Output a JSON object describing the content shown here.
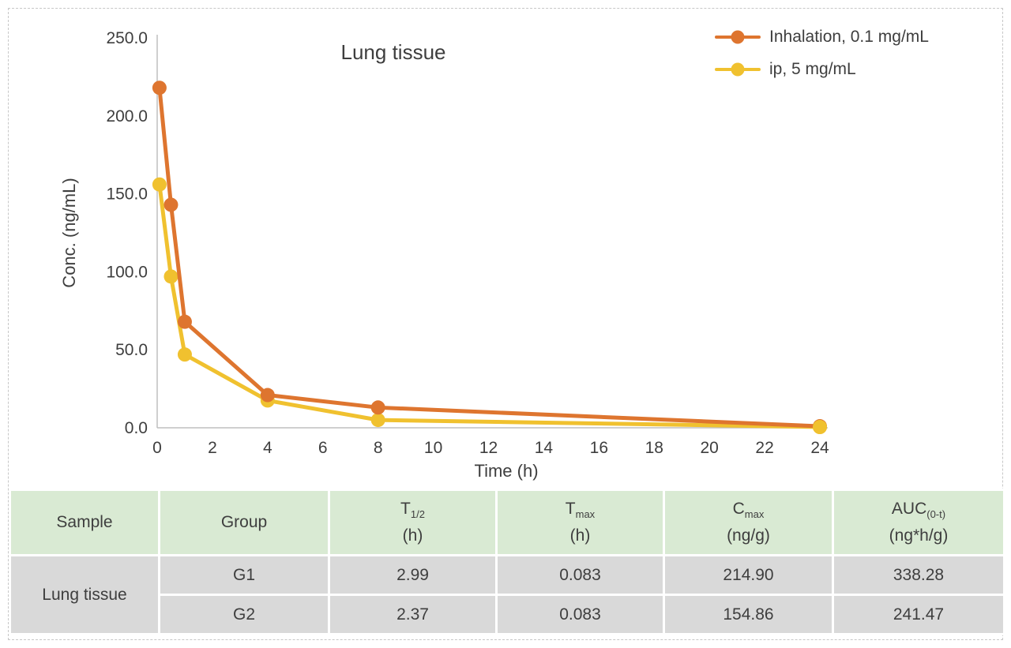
{
  "page": {
    "border_color": "#c7c7c7",
    "background": "#ffffff"
  },
  "chart_data": {
    "type": "line",
    "title": "Lung tissue",
    "xlabel": "Time (h)",
    "ylabel": "Conc. (ng/mL)",
    "xlim": [
      0,
      24
    ],
    "ylim": [
      0,
      250
    ],
    "x_ticks": [
      0,
      2,
      4,
      6,
      8,
      10,
      12,
      14,
      16,
      18,
      20,
      22,
      24
    ],
    "y_ticks": [
      0,
      50,
      100,
      150,
      200,
      250
    ],
    "y_tick_decimals": 1,
    "grid": false,
    "legend_position": "top-right",
    "axis_color": "#bfbfbf",
    "text_color": "#3e3e3e",
    "series": [
      {
        "name": "Inhalation, 0.1 mg/mL",
        "color": "#de752f",
        "x": [
          0.083,
          0.5,
          1,
          4,
          8,
          24
        ],
        "y": [
          218,
          143,
          68,
          21,
          13,
          1
        ]
      },
      {
        "name": "ip, 5 mg/mL",
        "color": "#f0c12f",
        "x": [
          0.083,
          0.5,
          1,
          4,
          8,
          24
        ],
        "y": [
          156,
          97,
          47,
          17.5,
          5,
          0.5
        ]
      }
    ]
  },
  "table": {
    "header_bg": "#d9ead3",
    "cell_bg": "#d9d9d9",
    "columns": [
      {
        "main": "Sample",
        "sub": "",
        "unit": ""
      },
      {
        "main": "Group",
        "sub": "",
        "unit": ""
      },
      {
        "main": "T",
        "sub": "1/2",
        "unit": "(h)"
      },
      {
        "main": "T",
        "sub": "max",
        "unit": "(h)"
      },
      {
        "main": "C",
        "sub": "max",
        "unit": "(ng/g)"
      },
      {
        "main": "AUC",
        "sub": "(0-t)",
        "unit": "(ng*h/g)"
      }
    ],
    "sample_label": "Lung tissue",
    "rows": [
      [
        "G1",
        "2.99",
        "0.083",
        "214.90",
        "338.28"
      ],
      [
        "G2",
        "2.37",
        "0.083",
        "154.86",
        "241.47"
      ]
    ]
  }
}
